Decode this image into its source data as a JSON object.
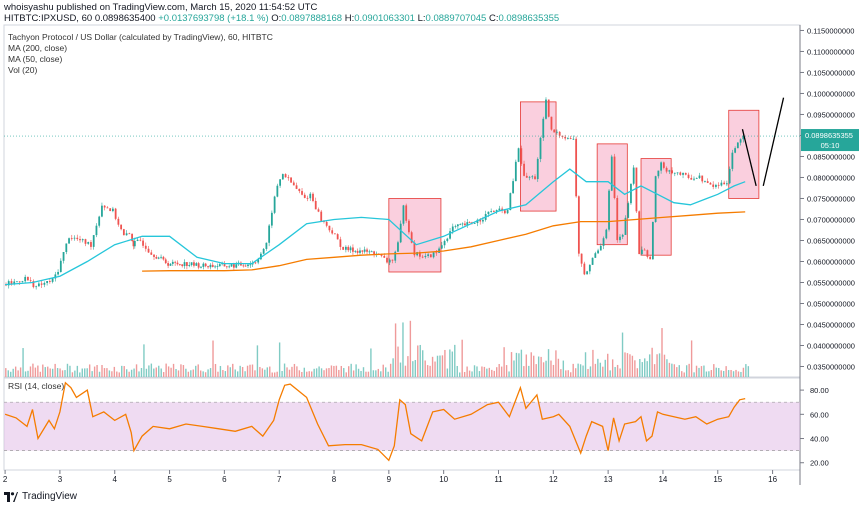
{
  "header": {
    "publisher_line": "whoisyashu published on TradingView.com, March 15, 2020 11:54:52 UTC",
    "symbol": "HITBTC:IPXUSD, 60",
    "last": "0.0898635400",
    "change": "+0.0137693798 (+18.1 %)",
    "o_label": "O:",
    "o_value": "0.0897888168",
    "h_label": "H:",
    "h_value": "0.0901063301",
    "l_label": "L:",
    "l_value": "0.0889707045",
    "c_label": "C:",
    "c_value": "0.0898635355"
  },
  "legend": {
    "title": "Tachyon Protocol / US Dollar (calculated by TradingView), 60, HITBTC",
    "ma200": "MA (200, close)",
    "ma50": "MA (50, close)",
    "vol": "Vol (20)",
    "rsi": "RSI (14, close)"
  },
  "price_label": {
    "value": "0.0898635355",
    "countdown": "05:10"
  },
  "footer": {
    "brand": "TradingView"
  },
  "colors": {
    "up": "#26a69a",
    "down": "#ef5350",
    "ma50": "#26c6da",
    "ma200": "#f57c00",
    "rsi": "#f57c00",
    "rsi_band": "#e1bee7",
    "box_fill": "#f8bbd0",
    "box_stroke": "#e53935"
  },
  "chart_data": [
    {
      "type": "line",
      "title": "Tachyon Protocol / US Dollar",
      "x_ticks": [
        "2",
        "3",
        "4",
        "5",
        "6",
        "7",
        "8",
        "9",
        "10",
        "11",
        "12",
        "13",
        "14",
        "15",
        "16"
      ],
      "y_ticks": [
        "0.1150000000",
        "0.1100000000",
        "0.1050000000",
        "0.1000000000",
        "0.0950000000",
        "0.0900000000",
        "0.0850000000",
        "0.0800000000",
        "0.0750000000",
        "0.0700000000",
        "0.0650000000",
        "0.0600000000",
        "0.0550000000",
        "0.0500000000",
        "0.0450000000",
        "0.0400000000",
        "0.0350000000"
      ],
      "ylim": [
        0.0325,
        0.1163
      ],
      "xlim": [
        1.98,
        16.5
      ],
      "close_series": {
        "x": [
          2.0,
          2.2,
          2.4,
          2.6,
          2.8,
          2.9,
          3.0,
          3.2,
          3.3,
          3.4,
          3.6,
          3.8,
          4.0,
          4.2,
          4.3,
          4.35,
          4.5,
          4.7,
          5.0,
          5.3,
          5.6,
          5.9,
          6.2,
          6.5,
          6.6,
          6.8,
          6.9,
          7.0,
          7.1,
          7.3,
          7.5,
          7.6,
          7.8,
          8.0,
          8.2,
          8.5,
          8.8,
          9.0,
          9.1,
          9.2,
          9.3,
          9.5,
          9.7,
          9.9,
          10.0,
          10.2,
          10.5,
          10.7,
          10.9,
          11.0,
          11.2,
          11.4,
          11.5,
          11.7,
          11.9,
          12.0,
          12.1,
          12.2,
          12.4,
          12.5,
          12.6,
          12.8,
          12.9,
          13.0,
          13.1,
          13.2,
          13.3,
          13.5,
          13.6,
          13.7,
          13.8,
          13.9,
          14.0,
          14.1,
          14.3,
          14.5,
          14.7,
          14.9,
          15.0,
          15.2,
          15.3,
          15.4,
          15.5
        ],
        "values": [
          0.0545,
          0.055,
          0.056,
          0.054,
          0.055,
          0.0555,
          0.058,
          0.066,
          0.0655,
          0.065,
          0.064,
          0.0735,
          0.072,
          0.066,
          0.0665,
          0.064,
          0.065,
          0.062,
          0.0595,
          0.0595,
          0.059,
          0.059,
          0.059,
          0.0595,
          0.06,
          0.064,
          0.072,
          0.078,
          0.081,
          0.078,
          0.075,
          0.076,
          0.07,
          0.067,
          0.063,
          0.0625,
          0.062,
          0.06,
          0.0605,
          0.064,
          0.073,
          0.062,
          0.061,
          0.062,
          0.064,
          0.068,
          0.069,
          0.07,
          0.072,
          0.072,
          0.072,
          0.087,
          0.08,
          0.08,
          0.098,
          0.091,
          0.0905,
          0.09,
          0.089,
          0.062,
          0.0565,
          0.062,
          0.064,
          0.068,
          0.085,
          0.065,
          0.066,
          0.082,
          0.062,
          0.063,
          0.06,
          0.08,
          0.083,
          0.082,
          0.081,
          0.08,
          0.08,
          0.078,
          0.078,
          0.079,
          0.086,
          0.088,
          0.0899
        ]
      },
      "ma50": {
        "x": [
          2.0,
          2.5,
          3.0,
          3.5,
          4.0,
          4.5,
          5.0,
          5.5,
          6.0,
          6.5,
          7.0,
          7.5,
          8.0,
          8.5,
          9.0,
          9.5,
          10.0,
          10.5,
          11.0,
          11.5,
          12.0,
          12.3,
          12.6,
          13.0,
          13.3,
          13.6,
          13.9,
          14.2,
          14.5,
          14.8,
          15.0,
          15.3,
          15.5
        ],
        "values": [
          0.0545,
          0.055,
          0.0565,
          0.06,
          0.064,
          0.066,
          0.066,
          0.061,
          0.0595,
          0.0595,
          0.064,
          0.069,
          0.07,
          0.0705,
          0.07,
          0.064,
          0.066,
          0.069,
          0.072,
          0.0735,
          0.079,
          0.082,
          0.079,
          0.079,
          0.076,
          0.078,
          0.076,
          0.074,
          0.0735,
          0.075,
          0.076,
          0.078,
          0.079
        ]
      },
      "ma200": {
        "x": [
          4.5,
          5.0,
          5.5,
          6.0,
          6.5,
          7.0,
          7.5,
          8.0,
          8.5,
          9.0,
          9.5,
          10.0,
          10.5,
          11.0,
          11.5,
          12.0,
          12.5,
          13.0,
          13.5,
          14.0,
          14.5,
          15.0,
          15.5
        ],
        "values": [
          0.0577,
          0.0578,
          0.0578,
          0.0578,
          0.058,
          0.059,
          0.0605,
          0.061,
          0.0615,
          0.0618,
          0.062,
          0.0625,
          0.0635,
          0.065,
          0.0665,
          0.0685,
          0.0695,
          0.0695,
          0.07,
          0.0705,
          0.071,
          0.0715,
          0.0718
        ]
      },
      "boxes": [
        {
          "x0": 9.0,
          "x1": 9.95,
          "y0": 0.0575,
          "y1": 0.075
        },
        {
          "x0": 11.4,
          "x1": 12.05,
          "y0": 0.072,
          "y1": 0.098
        },
        {
          "x0": 12.8,
          "x1": 13.35,
          "y0": 0.064,
          "y1": 0.088
        },
        {
          "x0": 13.6,
          "x1": 14.15,
          "y0": 0.0615,
          "y1": 0.0845
        },
        {
          "x0": 15.2,
          "x1": 15.75,
          "y0": 0.075,
          "y1": 0.096
        }
      ],
      "drawn_lines": [
        {
          "x": [
            15.45,
            15.7
          ],
          "y": [
            0.0915,
            0.078
          ]
        },
        {
          "x": [
            15.83,
            16.2
          ],
          "y": [
            0.078,
            0.099
          ]
        }
      ],
      "current_price": 0.0898635355
    },
    {
      "type": "line",
      "title": "RSI (14, close)",
      "y_ticks": [
        "80.00",
        "60.00",
        "40.00",
        "20.00"
      ],
      "ylim": [
        14,
        90
      ],
      "band": [
        30,
        70
      ],
      "x": [
        2.0,
        2.2,
        2.4,
        2.5,
        2.6,
        2.8,
        2.9,
        3.0,
        3.1,
        3.2,
        3.3,
        3.5,
        3.6,
        3.7,
        3.8,
        4.0,
        4.2,
        4.3,
        4.35,
        4.5,
        4.7,
        5.0,
        5.3,
        5.6,
        5.9,
        6.2,
        6.5,
        6.7,
        6.9,
        7.0,
        7.1,
        7.2,
        7.5,
        7.7,
        7.9,
        8.2,
        8.5,
        8.8,
        9.0,
        9.1,
        9.2,
        9.3,
        9.4,
        9.6,
        9.8,
        10.0,
        10.2,
        10.5,
        10.8,
        11.0,
        11.2,
        11.4,
        11.5,
        11.7,
        11.8,
        12.0,
        12.1,
        12.3,
        12.5,
        12.6,
        12.7,
        12.9,
        13.0,
        13.1,
        13.2,
        13.3,
        13.5,
        13.6,
        13.7,
        13.8,
        13.9,
        14.0,
        14.2,
        14.4,
        14.6,
        14.8,
        15.0,
        15.2,
        15.3,
        15.4,
        15.5
      ],
      "values": [
        60,
        57,
        50,
        64,
        40,
        55,
        48,
        62,
        86,
        82,
        74,
        80,
        58,
        60,
        62,
        55,
        60,
        45,
        30,
        42,
        50,
        48,
        52,
        50,
        48,
        46,
        50,
        42,
        55,
        72,
        84,
        85,
        74,
        52,
        34,
        35,
        35,
        31,
        22,
        34,
        72,
        68,
        44,
        38,
        62,
        64,
        56,
        60,
        68,
        70,
        58,
        82,
        65,
        76,
        56,
        58,
        60,
        50,
        28,
        42,
        54,
        50,
        30,
        57,
        38,
        52,
        54,
        58,
        38,
        42,
        62,
        60,
        58,
        56,
        58,
        52,
        56,
        58,
        66,
        72,
        73
      ]
    },
    {
      "type": "bar",
      "title": "Vol (20)"
    }
  ]
}
